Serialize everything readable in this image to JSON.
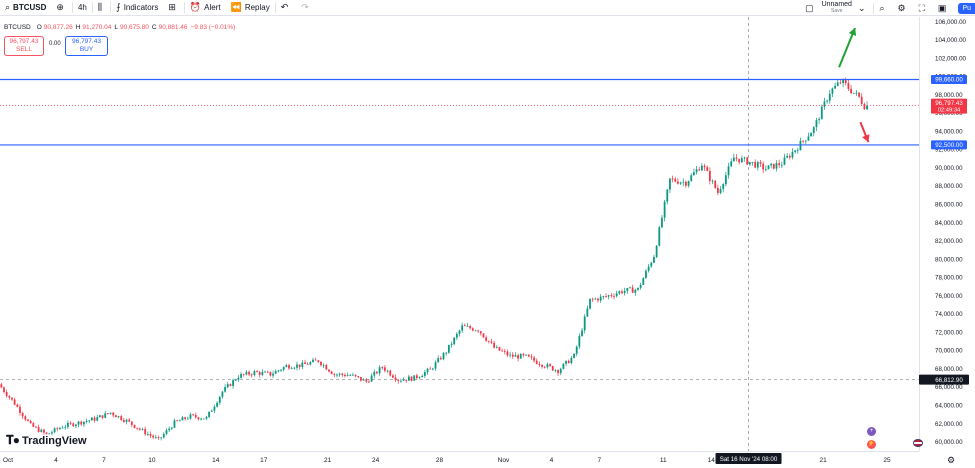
{
  "toolbar": {
    "symbol": "BTCUSD",
    "interval": "4h",
    "indicators_label": "Indicators",
    "alert_label": "Alert",
    "replay_label": "Replay",
    "layout_name": "Unnamed",
    "layout_status": "Save",
    "publish_label": "Pu"
  },
  "legend": {
    "open_label": "O",
    "open": "90,877.26",
    "high_label": "H",
    "high": "91,270.04",
    "low_label": "L",
    "low": "90,675.80",
    "close_label": "C",
    "close": "90,881.46",
    "change": "−9.83 (−0.01%)"
  },
  "trade": {
    "sell_price": "96,797.43",
    "sell_label": "SELL",
    "buy_price": "96,797.43",
    "buy_label": "BUY",
    "spread": "0.00"
  },
  "brand": "TradingView",
  "icons": [
    "plus-circle-icon",
    "candles-icon",
    "indicators-icon",
    "templates-icon",
    "alert-icon",
    "replay-icon",
    "undo-icon",
    "redo-icon",
    "layout-icon",
    "search-icon",
    "settings-icon",
    "fullscreen-icon",
    "camera-icon",
    "gear-icon"
  ],
  "colors": {
    "up": "#089981",
    "down": "#f23645",
    "level": "#2962ff",
    "arrow_up": "#22a136",
    "arrow_down": "#f23645"
  },
  "chart_data": {
    "type": "candlestick",
    "yaxis_ticks": [
      60000,
      62000,
      64000,
      66000,
      68000,
      70000,
      72000,
      74000,
      76000,
      78000,
      80000,
      82000,
      84000,
      86000,
      88000,
      90000,
      92000,
      94000,
      96000,
      98000,
      100000,
      102000,
      104000,
      106000
    ],
    "yaxis_tick_labels": [
      "60,000.00",
      "62,000.00",
      "64,000.00",
      "66,000.00",
      "68,000.00",
      "70,000.00",
      "72,000.00",
      "74,000.00",
      "76,000.00",
      "78,000.00",
      "80,000.00",
      "82,000.00",
      "84,000.00",
      "86,000.00",
      "88,000.00",
      "90,000.00",
      "92,000.00",
      "94,000.00",
      "96,000.00",
      "98,000.00",
      "100,000.00",
      "102,000.00",
      "104,000.00",
      "106,000.00"
    ],
    "ylim": [
      59000,
      106500
    ],
    "x_tick_labels": [
      "Oct",
      "4",
      "7",
      "10",
      "14",
      "17",
      "21",
      "24",
      "28",
      "Nov",
      "4",
      "7",
      "11",
      "14",
      "18",
      "21",
      "25"
    ],
    "x_tick_dates": [
      "2024-10-01",
      "2024-10-04",
      "2024-10-07",
      "2024-10-10",
      "2024-10-14",
      "2024-10-17",
      "2024-10-21",
      "2024-10-24",
      "2024-10-28",
      "2024-11-01",
      "2024-11-04",
      "2024-11-07",
      "2024-11-11",
      "2024-11-14",
      "2024-11-18",
      "2024-11-21",
      "2024-11-25"
    ],
    "xlim": [
      "2024-09-30T12:00",
      "2024-11-27T00:00"
    ],
    "anchors": [
      [
        "2024-09-30T12:00",
        66300
      ],
      [
        "2024-10-01T12:00",
        64200
      ],
      [
        "2024-10-02T12:00",
        61800
      ],
      [
        "2024-10-03T12:00",
        60800
      ],
      [
        "2024-10-04T12:00",
        61700
      ],
      [
        "2024-10-05T12:00",
        62100
      ],
      [
        "2024-10-06T12:00",
        62500
      ],
      [
        "2024-10-07T12:00",
        63200
      ],
      [
        "2024-10-08T12:00",
        62300
      ],
      [
        "2024-10-09T12:00",
        61200
      ],
      [
        "2024-10-10T12:00",
        60200
      ],
      [
        "2024-10-11T12:00",
        62100
      ],
      [
        "2024-10-12T12:00",
        62800
      ],
      [
        "2024-10-13T12:00",
        62600
      ],
      [
        "2024-10-14T12:00",
        65500
      ],
      [
        "2024-10-15T12:00",
        67200
      ],
      [
        "2024-10-16T12:00",
        67600
      ],
      [
        "2024-10-17T12:00",
        67400
      ],
      [
        "2024-10-18T12:00",
        68300
      ],
      [
        "2024-10-19T12:00",
        68400
      ],
      [
        "2024-10-20T12:00",
        68900
      ],
      [
        "2024-10-21T12:00",
        67400
      ],
      [
        "2024-10-22T12:00",
        67300
      ],
      [
        "2024-10-23T12:00",
        66600
      ],
      [
        "2024-10-24T12:00",
        68200
      ],
      [
        "2024-10-25T12:00",
        66800
      ],
      [
        "2024-10-26T12:00",
        67000
      ],
      [
        "2024-10-27T12:00",
        67900
      ],
      [
        "2024-10-28T12:00",
        69900
      ],
      [
        "2024-10-29T12:00",
        72600
      ],
      [
        "2024-10-30T12:00",
        72300
      ],
      [
        "2024-10-31T12:00",
        70300
      ],
      [
        "2024-11-01T12:00",
        69400
      ],
      [
        "2024-11-02T12:00",
        69300
      ],
      [
        "2024-11-03T12:00",
        68500
      ],
      [
        "2024-11-04T12:00",
        67800
      ],
      [
        "2024-11-05T12:00",
        69400
      ],
      [
        "2024-11-06T12:00",
        75500
      ],
      [
        "2024-11-07T12:00",
        75900
      ],
      [
        "2024-11-08T12:00",
        76500
      ],
      [
        "2024-11-09T12:00",
        76700
      ],
      [
        "2024-11-10T12:00",
        80400
      ],
      [
        "2024-11-11T12:00",
        88700
      ],
      [
        "2024-11-12T12:00",
        88400
      ],
      [
        "2024-11-13T12:00",
        90400
      ],
      [
        "2024-11-14T12:00",
        87300
      ],
      [
        "2024-11-15T12:00",
        91100
      ],
      [
        "2024-11-16T12:00",
        90600
      ],
      [
        "2024-11-17T12:00",
        89900
      ],
      [
        "2024-11-18T12:00",
        90500
      ],
      [
        "2024-11-19T12:00",
        92300
      ],
      [
        "2024-11-20T12:00",
        94300
      ],
      [
        "2024-11-21T12:00",
        98300
      ],
      [
        "2024-11-22T06:00",
        99500
      ],
      [
        "2024-11-22T18:00",
        98600
      ],
      [
        "2024-11-23T08:00",
        97700
      ],
      [
        "2024-11-23T16:00",
        96797
      ]
    ],
    "levels": [
      {
        "value": 99660,
        "label": "99,660.00"
      },
      {
        "value": 92500,
        "label": "92,500.00"
      }
    ],
    "current_price": {
      "value": 96797.43,
      "label": "96,797.43",
      "countdown": "02:49:34"
    },
    "crosshair": {
      "x": "2024-11-16T08:00",
      "y": 66812.9,
      "x_label": "Sat 16 Nov '24   08:00",
      "y_label": "66,812.90"
    },
    "annotations": [
      {
        "type": "arrow",
        "color": "#22a136",
        "direction": "up",
        "from": [
          "2024-11-22T00:00",
          101000
        ],
        "to": [
          "2024-11-23T00:00",
          105300
        ]
      },
      {
        "type": "arrow",
        "color": "#f23645",
        "direction": "down",
        "from": [
          "2024-11-23T08:00",
          95000
        ],
        "to": [
          "2024-11-23T20:00",
          92800
        ]
      }
    ],
    "interval": "4h"
  }
}
